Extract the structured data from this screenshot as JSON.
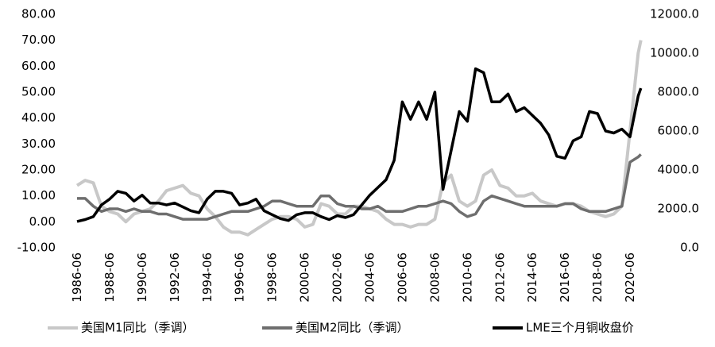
{
  "chart_data": {
    "type": "line",
    "x": [
      "1986-06",
      "1986-12",
      "1987-06",
      "1987-12",
      "1988-06",
      "1988-12",
      "1989-06",
      "1989-12",
      "1990-06",
      "1990-12",
      "1991-06",
      "1991-12",
      "1992-06",
      "1992-12",
      "1993-06",
      "1993-12",
      "1994-06",
      "1994-12",
      "1995-06",
      "1995-12",
      "1996-06",
      "1996-12",
      "1997-06",
      "1997-12",
      "1998-06",
      "1998-12",
      "1999-06",
      "1999-12",
      "2000-06",
      "2000-12",
      "2001-06",
      "2001-12",
      "2002-06",
      "2002-12",
      "2003-06",
      "2003-12",
      "2004-06",
      "2004-12",
      "2005-06",
      "2005-12",
      "2006-06",
      "2006-12",
      "2007-06",
      "2007-12",
      "2008-06",
      "2008-12",
      "2009-06",
      "2009-12",
      "2010-06",
      "2010-12",
      "2011-06",
      "2011-12",
      "2012-06",
      "2012-12",
      "2013-06",
      "2013-12",
      "2014-06",
      "2014-12",
      "2015-06",
      "2015-12",
      "2016-06",
      "2016-12",
      "2017-06",
      "2017-12",
      "2018-06",
      "2018-12",
      "2019-06",
      "2019-12",
      "2020-06",
      "2020-12",
      "2021-02"
    ],
    "series": [
      {
        "name": "美国M1同比（季调）",
        "color": "#c8c8c8",
        "values": [
          14,
          16,
          15,
          6,
          4,
          3,
          0,
          3,
          4,
          5,
          8,
          12,
          13,
          14,
          11,
          10,
          5,
          2,
          -2,
          -4,
          -4,
          -5,
          -3,
          -1,
          1,
          2,
          2,
          1,
          -2,
          -1,
          7,
          6,
          3,
          3,
          6,
          6,
          5,
          4,
          1,
          -1,
          -1,
          -2,
          -1,
          -1,
          1,
          15,
          18,
          8,
          6,
          8,
          18,
          20,
          14,
          13,
          10,
          10,
          11,
          8,
          7,
          6,
          7,
          7,
          6,
          4,
          3,
          2,
          3,
          6,
          35,
          65,
          70
        ]
      },
      {
        "name": "美国M2同比（季调）",
        "color": "#6e6e6e",
        "values": [
          9,
          9,
          6,
          4,
          5,
          5,
          4,
          5,
          4,
          4,
          3,
          3,
          2,
          1,
          1,
          1,
          1,
          2,
          3,
          4,
          4,
          4,
          5,
          6,
          8,
          8,
          7,
          6,
          6,
          6,
          10,
          10,
          7,
          6,
          6,
          5,
          5,
          6,
          4,
          4,
          4,
          5,
          6,
          6,
          7,
          8,
          7,
          4,
          2,
          3,
          8,
          10,
          9,
          8,
          7,
          6,
          6,
          6,
          6,
          6,
          7,
          7,
          5,
          4,
          4,
          4,
          5,
          6,
          23,
          25,
          26
        ]
      },
      {
        "name": "LME三个月铜收盘价",
        "color": "#000000",
        "axis": "y2",
        "values": [
          1350,
          1450,
          1600,
          2200,
          2500,
          2900,
          2800,
          2400,
          2700,
          2300,
          2300,
          2200,
          2300,
          2100,
          1900,
          1800,
          2500,
          2900,
          2900,
          2800,
          2200,
          2300,
          2500,
          1900,
          1700,
          1500,
          1400,
          1700,
          1800,
          1800,
          1600,
          1450,
          1650,
          1550,
          1700,
          2200,
          2700,
          3100,
          3500,
          4500,
          7500,
          6600,
          7500,
          6600,
          8000,
          3000,
          5000,
          7000,
          6500,
          9200,
          9000,
          7500,
          7500,
          7900,
          7000,
          7200,
          6800,
          6400,
          5800,
          4700,
          4600,
          5500,
          5700,
          7000,
          6900,
          6000,
          5900,
          6100,
          5700,
          7800,
          8200
        ]
      }
    ],
    "xticks": [
      "1986-06",
      "1988-06",
      "1990-06",
      "1992-06",
      "1994-06",
      "1996-06",
      "1998-06",
      "2000-06",
      "2002-06",
      "2004-06",
      "2006-06",
      "2008-06",
      "2010-06",
      "2012-06",
      "2014-06",
      "2016-06",
      "2018-06",
      "2020-06"
    ],
    "ylim": [
      -10,
      80
    ],
    "yticks": [
      {
        "value": -10,
        "label": "-10.00"
      },
      {
        "value": 0,
        "label": "0.00"
      },
      {
        "value": 10,
        "label": "10.00"
      },
      {
        "value": 20,
        "label": "20.00"
      },
      {
        "value": 30,
        "label": "30.00"
      },
      {
        "value": 40,
        "label": "40.00"
      },
      {
        "value": 50,
        "label": "50.00"
      },
      {
        "value": 60,
        "label": "60.00"
      },
      {
        "value": 70,
        "label": "70.00"
      },
      {
        "value": 80,
        "label": "80.00"
      }
    ],
    "y2lim": [
      0,
      12000
    ],
    "y2ticks": [
      {
        "value": 0,
        "label": "0.0"
      },
      {
        "value": 2000,
        "label": "2000.0"
      },
      {
        "value": 4000,
        "label": "4000.0"
      },
      {
        "value": 6000,
        "label": "6000.0"
      },
      {
        "value": 8000,
        "label": "8000.0"
      },
      {
        "value": 10000,
        "label": "10000.0"
      },
      {
        "value": 12000,
        "label": "12000.0"
      }
    ],
    "grid": false,
    "legend": "bottom"
  }
}
